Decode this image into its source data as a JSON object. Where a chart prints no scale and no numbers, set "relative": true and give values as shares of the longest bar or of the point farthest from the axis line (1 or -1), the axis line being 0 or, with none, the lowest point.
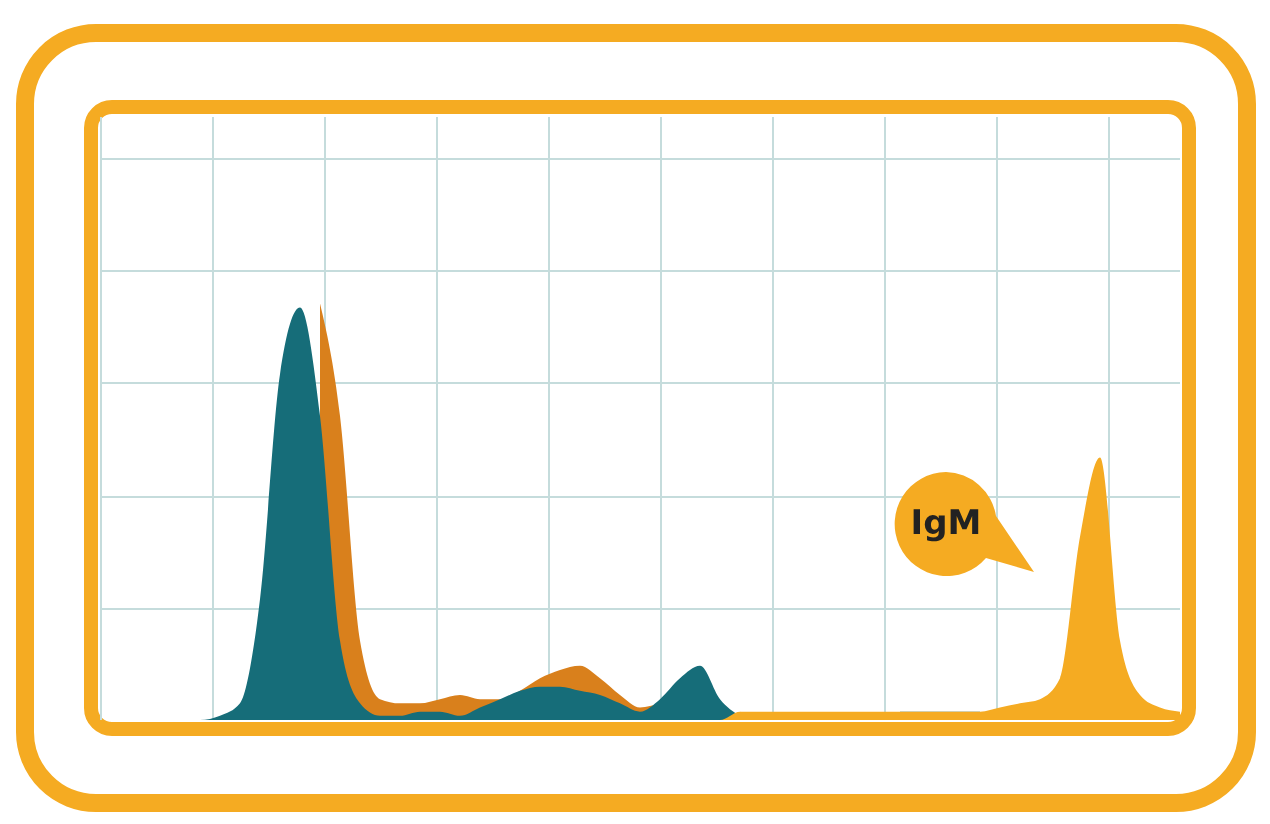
{
  "chart_data": {
    "type": "area",
    "relative": true,
    "grid": true,
    "tick_labels": false,
    "categories": [
      null,
      null,
      null,
      null,
      null,
      null,
      null,
      null,
      null,
      null,
      null,
      null,
      null,
      null,
      null,
      null,
      null,
      null,
      null,
      null,
      null,
      null,
      null,
      null,
      null,
      null,
      null,
      null,
      null,
      null,
      null,
      null,
      null,
      null,
      null,
      null,
      null,
      null,
      null,
      null,
      null,
      null,
      null,
      null,
      null,
      null,
      null,
      null,
      null,
      null,
      null,
      null,
      null,
      null,
      null
    ],
    "series": [
      {
        "color": "#d9801c",
        "values": [
          null,
          null,
          null,
          null,
          null,
          null,
          null,
          null,
          null,
          null,
          null,
          1,
          0.73,
          0.19,
          0.05,
          0.04,
          0.04,
          0.05,
          0.06,
          0.05,
          0.05,
          0.07,
          0.1,
          0.12,
          0.13,
          0.1,
          0.06,
          0.03,
          0.04,
          null,
          null,
          null,
          0.02,
          0,
          0,
          0,
          0,
          0,
          0,
          0,
          0,
          0,
          0,
          0,
          0,
          0,
          0,
          0,
          0,
          0,
          0,
          0,
          0,
          0,
          0
        ]
      },
      {
        "color": "#166d79",
        "values": [
          0,
          0,
          0,
          0,
          0,
          0,
          0.01,
          0.04,
          0.29,
          0.83,
          0.99,
          0.73,
          0.19,
          0.04,
          0.01,
          0.01,
          0.02,
          0.02,
          0.01,
          0.03,
          0.05,
          0.07,
          0.08,
          0.08,
          0.07,
          0.06,
          0.04,
          0.02,
          0.05,
          0.1,
          0.13,
          0.05,
          0.01,
          null,
          null,
          null,
          null,
          null,
          null,
          null,
          0.02,
          0.02,
          0.02,
          0.02,
          0.02,
          null,
          null,
          null,
          null,
          null,
          null,
          null,
          null,
          null,
          null
        ]
      },
      {
        "color": "#f5ab22",
        "values": [
          0,
          0,
          0,
          0,
          0,
          0,
          0,
          0,
          0,
          0,
          0,
          0,
          0,
          0,
          0,
          0,
          0,
          0,
          0,
          0,
          0,
          0,
          0,
          0,
          0,
          0,
          0,
          0,
          0,
          0,
          0,
          0,
          0.02,
          0.02,
          0.02,
          0.02,
          0.02,
          0.02,
          0.02,
          0.02,
          0.02,
          0.02,
          0.02,
          0.02,
          0.02,
          0.03,
          0.04,
          0.05,
          0.1,
          0.44,
          0.63,
          0.19,
          0.06,
          0.03,
          0.02
        ]
      }
    ],
    "annotations": [
      "IgM"
    ]
  }
}
